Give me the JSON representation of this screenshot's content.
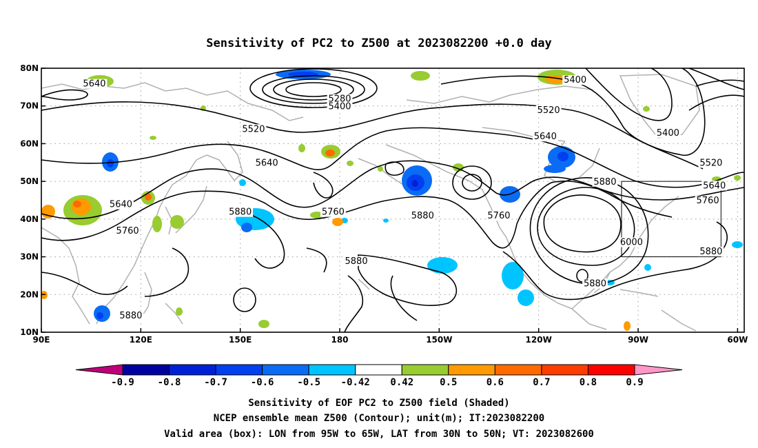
{
  "title": "Sensitivity of PC2 to Z500 at 2023082200 +0.0 day",
  "map": {
    "lon_range": [
      90,
      302
    ],
    "lat_range": [
      10,
      80
    ],
    "lat_ticks": [
      {
        "value": 80,
        "label": "80N"
      },
      {
        "value": 70,
        "label": "70N"
      },
      {
        "value": 60,
        "label": "60N"
      },
      {
        "value": 50,
        "label": "50N"
      },
      {
        "value": 40,
        "label": "40N"
      },
      {
        "value": 30,
        "label": "30N"
      },
      {
        "value": 20,
        "label": "20N"
      },
      {
        "value": 10,
        "label": "10N"
      }
    ],
    "lon_ticks": [
      {
        "value": 90,
        "label": "90E"
      },
      {
        "value": 120,
        "label": "120E"
      },
      {
        "value": 150,
        "label": "150E"
      },
      {
        "value": 180,
        "label": "180"
      },
      {
        "value": 210,
        "label": "150W"
      },
      {
        "value": 240,
        "label": "120W"
      },
      {
        "value": 270,
        "label": "90W"
      },
      {
        "value": 300,
        "label": "60W"
      }
    ],
    "gridlines": "dotted",
    "valid_box": {
      "lon": [
        265,
        295
      ],
      "lat": [
        30,
        50
      ]
    },
    "contour_labels": [
      {
        "text": "5640",
        "lon": 106,
        "lat": 75.5
      },
      {
        "text": "5280",
        "lon": 180,
        "lat": 71.5
      },
      {
        "text": "5400",
        "lon": 180,
        "lat": 69.5
      },
      {
        "text": "5400",
        "lon": 251,
        "lat": 76.5
      },
      {
        "text": "5520",
        "lon": 154,
        "lat": 63.5
      },
      {
        "text": "5520",
        "lon": 243,
        "lat": 68.5
      },
      {
        "text": "5640",
        "lon": 242,
        "lat": 61.5
      },
      {
        "text": "5400",
        "lon": 279,
        "lat": 62.5
      },
      {
        "text": "5520",
        "lon": 292,
        "lat": 54.5
      },
      {
        "text": "5640",
        "lon": 158,
        "lat": 54.5
      },
      {
        "text": "5640",
        "lon": 114,
        "lat": 43.5
      },
      {
        "text": "5880",
        "lon": 150,
        "lat": 41.5
      },
      {
        "text": "5760",
        "lon": 178,
        "lat": 41.5
      },
      {
        "text": "5880",
        "lon": 205,
        "lat": 40.5
      },
      {
        "text": "5760",
        "lon": 228,
        "lat": 40.5
      },
      {
        "text": "5760",
        "lon": 116,
        "lat": 36.5
      },
      {
        "text": "5880",
        "lon": 260,
        "lat": 49.5
      },
      {
        "text": "5640",
        "lon": 293,
        "lat": 48.5
      },
      {
        "text": "5760",
        "lon": 291,
        "lat": 44.5
      },
      {
        "text": "6000",
        "lon": 268,
        "lat": 33.5
      },
      {
        "text": "5880",
        "lon": 292,
        "lat": 31.0
      },
      {
        "text": "5880",
        "lon": 185,
        "lat": 28.5
      },
      {
        "text": "5880",
        "lon": 257,
        "lat": 22.5
      },
      {
        "text": "5880",
        "lon": 117,
        "lat": 14.0
      }
    ]
  },
  "colorbar": {
    "labels": [
      "-0.9",
      "-0.8",
      "-0.7",
      "-0.6",
      "-0.5",
      "-0.42",
      "0.42",
      "0.5",
      "0.6",
      "0.7",
      "0.8",
      "0.9"
    ],
    "colors": [
      "#0000a0",
      "#0020d8",
      "#0040f0",
      "#0a6cf4",
      "#00c4ff",
      "#ffffff",
      "#98cc30",
      "#ff9a00",
      "#ff6a00",
      "#ff3c00",
      "#ff0000"
    ],
    "low_extend": "#c0007a",
    "high_extend": "#ff98c8"
  },
  "footer": {
    "line1": "Sensitivity of EOF PC2 to Z500 field (Shaded)",
    "line2": "NCEP ensemble mean Z500 (Contour); unit(m); IT:2023082200",
    "line3": "Valid area (box): LON from 95W to 65W, LAT from 30N to 50N; VT: 2023082600"
  }
}
